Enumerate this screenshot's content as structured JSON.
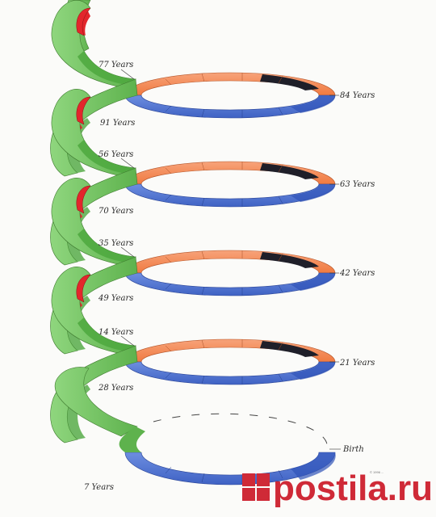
{
  "labels": {
    "top": [
      "84 Years",
      "77 Years",
      "91 Years"
    ],
    "level2": [
      "63 Years",
      "56 Years",
      "70 Years"
    ],
    "level3": [
      "42 Years",
      "35 Years",
      "49 Years"
    ],
    "level4": [
      "21 Years",
      "14 Years",
      "28 Years"
    ],
    "bottom": [
      "Birth",
      "7 Years"
    ]
  },
  "watermark": {
    "text": "postila.ru",
    "copyright": "© 1996 ..."
  },
  "colors": {
    "orange": "#f2844f",
    "blue": "#4e73d2",
    "green": "#71c25f",
    "red": "#e3262c",
    "black": "#1f1f29",
    "watermark": "#cf2a37"
  }
}
